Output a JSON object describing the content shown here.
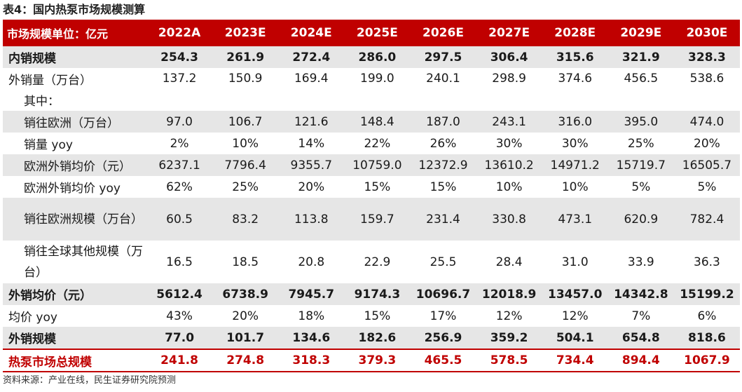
{
  "title": "表4：国内热泵市场规模测算",
  "header": [
    "市场规模单位：亿元",
    "2022A",
    "2023E",
    "2024E",
    "2025E",
    "2026E",
    "2027E",
    "2028E",
    "2029E",
    "2030E"
  ],
  "rows": [
    {
      "label": "内销规模",
      "values": [
        "254.3",
        "261.9",
        "272.4",
        "286.0",
        "297.5",
        "306.4",
        "315.6",
        "321.9",
        "328.3"
      ]
    },
    {
      "label": "外销量（万台）",
      "values": [
        "137.2",
        "150.9",
        "169.4",
        "199.0",
        "240.1",
        "298.9",
        "374.6",
        "456.5",
        "538.6"
      ]
    },
    {
      "label": "其中：",
      "values": []
    },
    {
      "label": "销往欧洲（万台）",
      "values": [
        "97.0",
        "106.7",
        "121.6",
        "148.4",
        "187.0",
        "243.1",
        "316.0",
        "395.0",
        "474.0"
      ]
    },
    {
      "label": "销量 yoy",
      "values": [
        "2%",
        "10%",
        "14%",
        "22%",
        "26%",
        "30%",
        "30%",
        "25%",
        "20%"
      ]
    },
    {
      "label": "欧洲外销均价（元）",
      "values": [
        "6237.1",
        "7796.4",
        "9355.7",
        "10759.0",
        "12372.9",
        "13610.2",
        "14971.2",
        "15719.7",
        "16505.7"
      ]
    },
    {
      "label": "欧洲外销均价 yoy",
      "values": [
        "62%",
        "25%",
        "20%",
        "15%",
        "15%",
        "10%",
        "10%",
        "5%",
        "5%"
      ]
    },
    {
      "label": "销往欧洲规模（万台）",
      "values": [
        "60.5",
        "83.2",
        "113.8",
        "159.7",
        "231.4",
        "330.8",
        "473.1",
        "620.9",
        "782.4"
      ]
    },
    {
      "label": "销往全球其他规模（万台）",
      "values": [
        "16.5",
        "18.5",
        "20.8",
        "22.9",
        "25.5",
        "28.4",
        "31.0",
        "33.9",
        "36.3"
      ]
    },
    {
      "label": "外销均价（元）",
      "values": [
        "5612.4",
        "6738.9",
        "7945.7",
        "9174.3",
        "10696.7",
        "12018.9",
        "13457.0",
        "14342.8",
        "15199.2"
      ]
    },
    {
      "label": "均价 yoy",
      "values": [
        "43%",
        "20%",
        "18%",
        "15%",
        "17%",
        "12%",
        "12%",
        "7%",
        "6%"
      ]
    },
    {
      "label": "外销规模",
      "values": [
        "77.0",
        "101.7",
        "134.6",
        "182.6",
        "256.9",
        "359.2",
        "504.1",
        "654.8",
        "818.6"
      ]
    },
    {
      "label": "热泵市场总规模",
      "values": [
        "241.8",
        "274.8",
        "318.3",
        "379.3",
        "465.5",
        "578.5",
        "734.4",
        "894.4",
        "1067.9"
      ]
    }
  ],
  "source": "资料来源：产业在线，民生证券研究院预测",
  "colors": {
    "accent": "#c00000",
    "shade": "#e6e6e6"
  }
}
